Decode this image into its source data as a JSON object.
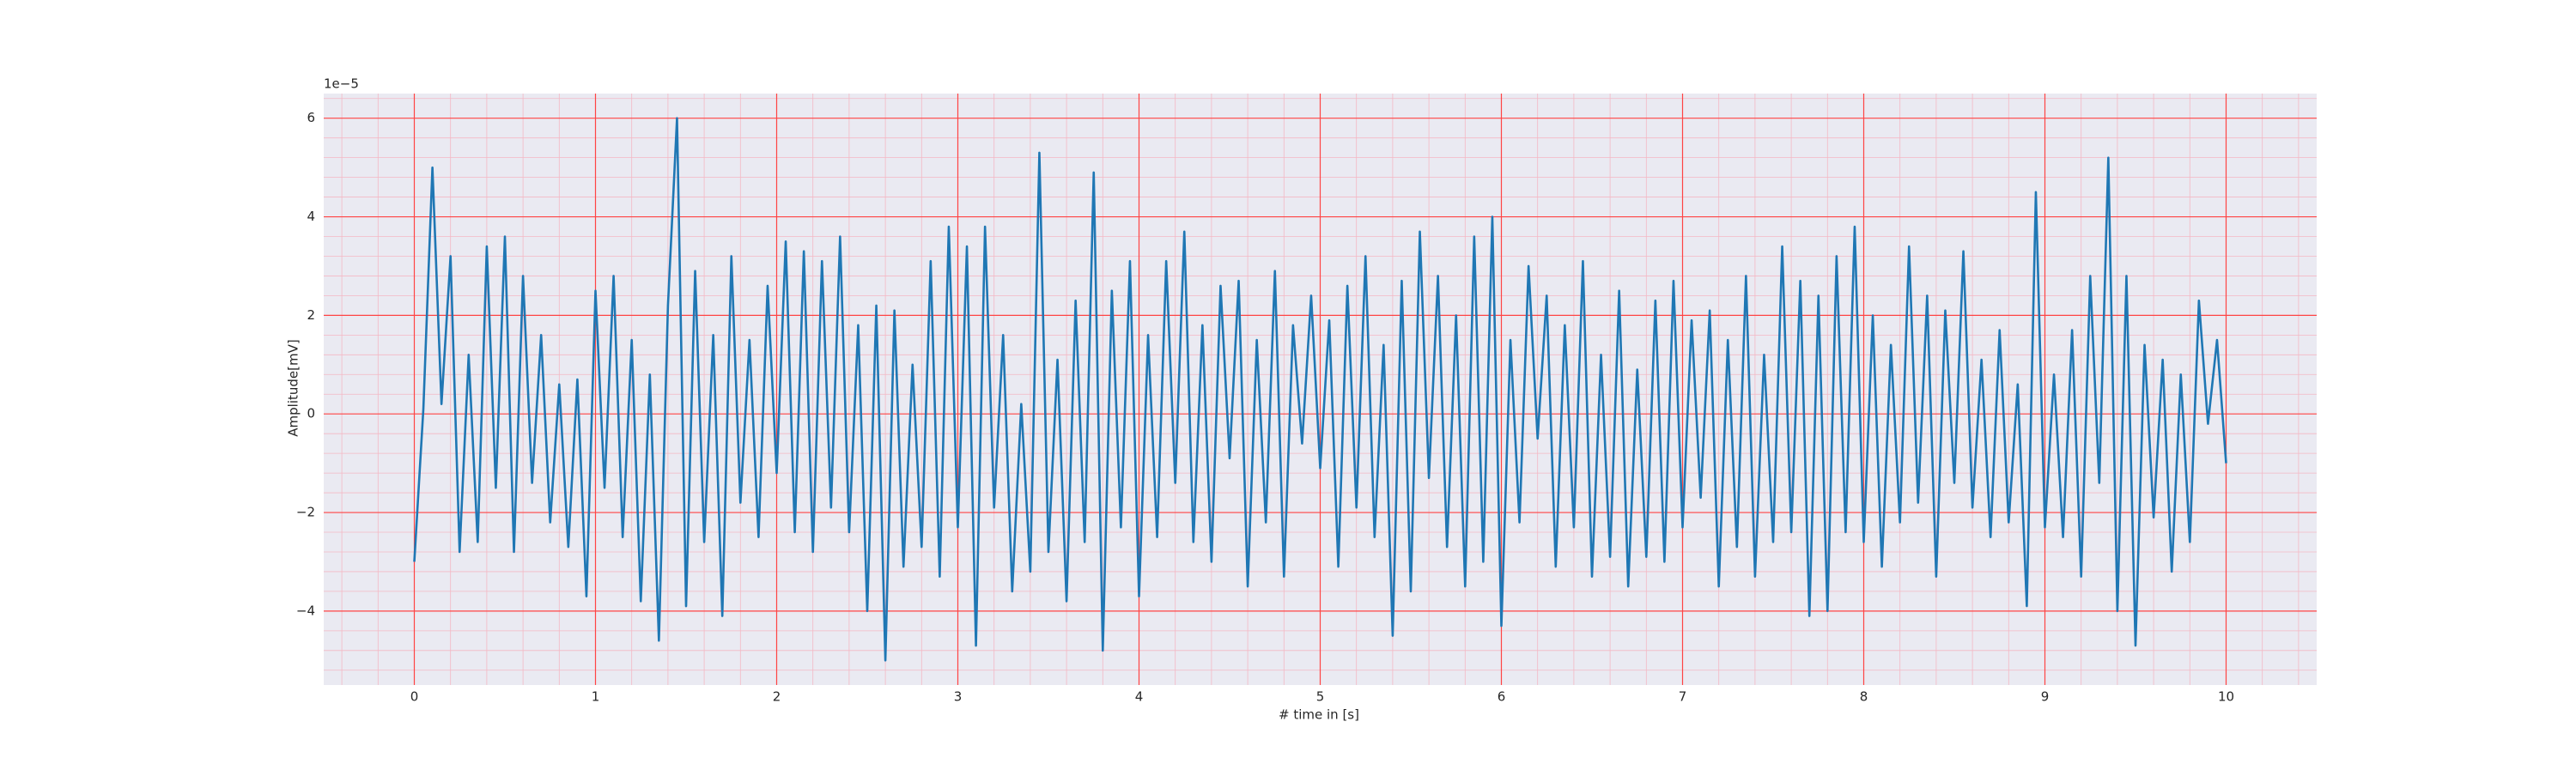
{
  "chart_data": {
    "type": "line",
    "xlabel": "# time in [s]",
    "ylabel": "Amplitude[mV]",
    "y_offset_label": "1e−5",
    "color": "#1f77b4",
    "background": "#eaeaf2",
    "grid": true,
    "grid_color": "#ff4444",
    "minor_grid": true,
    "minor_grid_color": "#f4b8c4",
    "minor_divisions": 5,
    "xlim": [
      -0.5,
      10.5
    ],
    "ylim": [
      -5.5,
      6.5
    ],
    "xticks": [
      0,
      1,
      2,
      3,
      4,
      5,
      6,
      7,
      8,
      9,
      10
    ],
    "yticks": [
      {
        "value": -4,
        "label": "−4"
      },
      {
        "value": -2,
        "label": "−2"
      },
      0,
      2,
      4,
      6
    ],
    "x": [
      0,
      0.05,
      0.1,
      0.15,
      0.2,
      0.25,
      0.3,
      0.35,
      0.4,
      0.45,
      0.5,
      0.55,
      0.6,
      0.65,
      0.7,
      0.75,
      0.8,
      0.85,
      0.9,
      0.95,
      1,
      1.05,
      1.1,
      1.15,
      1.2,
      1.25,
      1.3,
      1.35,
      1.4,
      1.45,
      1.5,
      1.55,
      1.6,
      1.65,
      1.7,
      1.75,
      1.8,
      1.85,
      1.9,
      1.95,
      2,
      2.05,
      2.1,
      2.15,
      2.2,
      2.25,
      2.3,
      2.35,
      2.4,
      2.45,
      2.5,
      2.55,
      2.6,
      2.65,
      2.7,
      2.75,
      2.8,
      2.85,
      2.9,
      2.95,
      3,
      3.05,
      3.1,
      3.15,
      3.2,
      3.25,
      3.3,
      3.35,
      3.4,
      3.45,
      3.5,
      3.55,
      3.6,
      3.65,
      3.7,
      3.75,
      3.8,
      3.85,
      3.9,
      3.95,
      4,
      4.05,
      4.1,
      4.15,
      4.2,
      4.25,
      4.3,
      4.35,
      4.4,
      4.45,
      4.5,
      4.55,
      4.6,
      4.65,
      4.7,
      4.75,
      4.8,
      4.85,
      4.9,
      4.95,
      5,
      5.05,
      5.1,
      5.15,
      5.2,
      5.25,
      5.3,
      5.35,
      5.4,
      5.45,
      5.5,
      5.55,
      5.6,
      5.65,
      5.7,
      5.75,
      5.8,
      5.85,
      5.9,
      5.95,
      6,
      6.05,
      6.1,
      6.15,
      6.2,
      6.25,
      6.3,
      6.35,
      6.4,
      6.45,
      6.5,
      6.55,
      6.6,
      6.65,
      6.7,
      6.75,
      6.8,
      6.85,
      6.9,
      6.95,
      7,
      7.05,
      7.1,
      7.15,
      7.2,
      7.25,
      7.3,
      7.35,
      7.4,
      7.45,
      7.5,
      7.55,
      7.6,
      7.65,
      7.7,
      7.75,
      7.8,
      7.85,
      7.9,
      7.95,
      8,
      8.05,
      8.1,
      8.15,
      8.2,
      8.25,
      8.3,
      8.35,
      8.4,
      8.45,
      8.5,
      8.55,
      8.6,
      8.65,
      8.7,
      8.75,
      8.8,
      8.85,
      8.9,
      8.95,
      9,
      9.05,
      9.1,
      9.15,
      9.2,
      9.25,
      9.3,
      9.35,
      9.4,
      9.45,
      9.5,
      9.55,
      9.6,
      9.65,
      9.7,
      9.75,
      9.8,
      9.85,
      9.9,
      9.95,
      10
    ],
    "values": [
      -3,
      0.1,
      5,
      0.2,
      3.2,
      -2.8,
      1.2,
      -2.6,
      3.4,
      -1.5,
      3.6,
      -2.8,
      2.8,
      -1.4,
      1.6,
      -2.2,
      0.6,
      -2.7,
      0.7,
      -3.7,
      2.5,
      -1.5,
      2.8,
      -2.5,
      1.5,
      -3.8,
      0.8,
      -4.6,
      2.2,
      6,
      -3.9,
      2.9,
      -2.6,
      1.6,
      -4.1,
      3.2,
      -1.8,
      1.5,
      -2.5,
      2.6,
      -1.2,
      3.5,
      -2.4,
      3.3,
      -2.8,
      3.1,
      -1.9,
      3.6,
      -2.4,
      1.8,
      -4,
      2.2,
      -5,
      2.1,
      -3.1,
      1,
      -2.7,
      3.1,
      -3.3,
      3.8,
      -2.3,
      3.4,
      -4.7,
      3.8,
      -1.9,
      1.6,
      -3.6,
      0.2,
      -3.2,
      5.3,
      -2.8,
      1.1,
      -3.8,
      2.3,
      -2.6,
      4.9,
      -4.8,
      2.5,
      -2.3,
      3.1,
      -3.7,
      1.6,
      -2.5,
      3.1,
      -1.4,
      3.7,
      -2.6,
      1.8,
      -3,
      2.6,
      -0.9,
      2.7,
      -3.5,
      1.5,
      -2.2,
      2.9,
      -3.3,
      1.8,
      -0.6,
      2.4,
      -1.1,
      1.9,
      -3.1,
      2.6,
      -1.9,
      3.2,
      -2.5,
      1.4,
      -4.5,
      2.7,
      -3.6,
      3.7,
      -1.3,
      2.8,
      -2.7,
      2,
      -3.5,
      3.6,
      -3,
      4,
      -4.3,
      1.5,
      -2.2,
      3,
      -0.5,
      2.4,
      -3.1,
      1.8,
      -2.3,
      3.1,
      -3.3,
      1.2,
      -2.9,
      2.5,
      -3.5,
      0.9,
      -2.9,
      2.3,
      -3,
      2.7,
      -2.3,
      1.9,
      -1.7,
      2.1,
      -3.5,
      1.5,
      -2.7,
      2.8,
      -3.3,
      1.2,
      -2.6,
      3.4,
      -2.4,
      2.7,
      -4.1,
      2.4,
      -4,
      3.2,
      -2.4,
      3.8,
      -2.6,
      2,
      -3.1,
      1.4,
      -2.2,
      3.4,
      -1.8,
      2.4,
      -3.3,
      2.1,
      -1.4,
      3.3,
      -1.9,
      1.1,
      -2.5,
      1.7,
      -2.2,
      0.6,
      -3.9,
      4.5,
      -2.3,
      0.8,
      -2.5,
      1.7,
      -3.3,
      2.8,
      -1.4,
      5.2,
      -4,
      2.8,
      -4.7,
      1.4,
      -2.1,
      1.1,
      -3.2,
      0.8,
      -2.6,
      2.3,
      -0.2,
      1.5,
      -1
    ]
  }
}
